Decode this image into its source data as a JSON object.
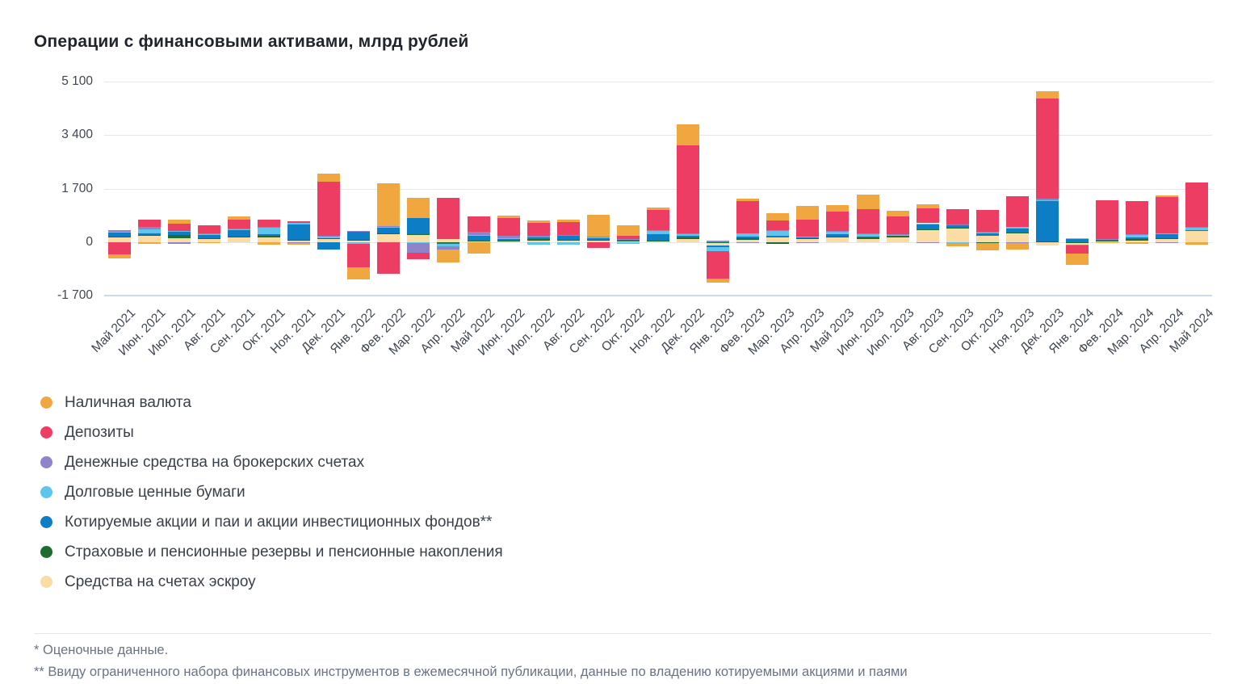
{
  "page": {
    "title": "Операции с финансовыми активами, млрд рублей"
  },
  "chart_data": {
    "type": "bar",
    "stacked": true,
    "title": "Операции с финансовыми активами, млрд рублей",
    "unit": "млрд рублей",
    "legend_position": "bottom-left",
    "grid": true,
    "x_label_rotation": -45,
    "y_axis": {
      "range": [
        -1700,
        5100
      ],
      "ticks": [
        {
          "value": 5100,
          "label": "5 100"
        },
        {
          "value": 3400,
          "label": "3 400"
        },
        {
          "value": 1700,
          "label": "1 700"
        },
        {
          "value": 0,
          "label": "0"
        },
        {
          "value": -1700,
          "label": "-1 700"
        }
      ]
    },
    "categories": [
      "Май 2021",
      "Июн. 2021",
      "Июл. 2021",
      "Авг. 2021",
      "Сен. 2021",
      "Окт. 2021",
      "Ноя. 2021",
      "Дек. 2021",
      "Янв. 2022",
      "Фев. 2022",
      "Мар. 2022",
      "Апр. 2022",
      "Май 2022",
      "Июн. 2022",
      "Июл. 2022",
      "Авг. 2022",
      "Сен. 2022",
      "Окт. 2022",
      "Ноя. 2022",
      "Дек. 2022",
      "Янв. 2023",
      "Фев. 2023",
      "Мар. 2023",
      "Апр. 2023",
      "Май 2023",
      "Июн. 2023",
      "Июл. 2023",
      "Авг. 2023",
      "Сен. 2023",
      "Окт. 2023",
      "Ноя. 2023",
      "Дек. 2023",
      "Янв. 2024",
      "Фев. 2024",
      "Мар. 2024",
      "Апр. 2024",
      "Май 2024"
    ],
    "series": [
      {
        "key": "cash",
        "name": "Наличная валюта",
        "color": "#f0a73f",
        "values": [
          -130,
          -60,
          130,
          -40,
          110,
          -85,
          -30,
          255,
          -375,
          1360,
          640,
          -410,
          -365,
          85,
          60,
          85,
          685,
          315,
          85,
          660,
          -130,
          85,
          215,
          430,
          215,
          480,
          170,
          130,
          -75,
          -215,
          -200,
          255,
          -365,
          -40,
          -50,
          55,
          -85
        ]
      },
      {
        "key": "deposits",
        "name": "Депозиты",
        "color": "#ee3d63",
        "values": [
          -385,
          250,
          215,
          240,
          275,
          230,
          60,
          1715,
          -740,
          -990,
          -210,
          1310,
          510,
          555,
          430,
          400,
          -195,
          110,
          640,
          2800,
          -870,
          1030,
          325,
          540,
          615,
          750,
          570,
          470,
          510,
          710,
          975,
          3160,
          -255,
          1220,
          1030,
          1140,
          1410
        ]
      },
      {
        "key": "brokerage",
        "name": "Денежные средства на брокерских счетах",
        "color": "#8f83c9",
        "values": [
          50,
          60,
          -45,
          15,
          15,
          20,
          -40,
          20,
          15,
          15,
          -300,
          -90,
          85,
          70,
          50,
          20,
          15,
          10,
          15,
          20,
          35,
          -30,
          15,
          -30,
          15,
          15,
          15,
          -30,
          10,
          10,
          -30,
          50,
          -20,
          10,
          20,
          -30,
          10
        ]
      },
      {
        "key": "debt_securities",
        "name": "Долговые ценные бумаги",
        "color": "#5fc5ef",
        "values": [
          10,
          130,
          45,
          50,
          50,
          215,
          60,
          75,
          -60,
          50,
          -30,
          -85,
          20,
          20,
          -70,
          -70,
          40,
          -50,
          110,
          60,
          -120,
          100,
          145,
          40,
          85,
          105,
          10,
          15,
          -60,
          15,
          40,
          35,
          25,
          20,
          85,
          20,
          85
        ]
      },
      {
        "key": "equities",
        "name": "Котируемые акции и паи и акции инвестиционных фондов**",
        "color": "#0d7dc6",
        "values": [
          155,
          50,
          100,
          100,
          190,
          60,
          480,
          -230,
          265,
          180,
          515,
          -20,
          170,
          70,
          50,
          140,
          45,
          50,
          190,
          50,
          -50,
          50,
          60,
          20,
          85,
          20,
          20,
          190,
          70,
          110,
          130,
          1280,
          90,
          20,
          60,
          140,
          20
        ]
      },
      {
        "key": "insurance_pension",
        "name": "Страховые и пенсионные резервы и пенсионные накопления",
        "color": "#1d6c31",
        "values": [
          10,
          45,
          85,
          20,
          10,
          50,
          10,
          15,
          35,
          15,
          15,
          -30,
          20,
          30,
          30,
          10,
          35,
          20,
          15,
          50,
          10,
          50,
          -50,
          10,
          10,
          50,
          50,
          10,
          10,
          -40,
          10,
          25,
          10,
          30,
          40,
          10,
          10
        ]
      },
      {
        "key": "escrow",
        "name": "Средства на счетах эскроу",
        "color": "#fbdca4",
        "values": [
          155,
          190,
          135,
          100,
          170,
          145,
          60,
          105,
          40,
          255,
          230,
          100,
          25,
          15,
          60,
          60,
          50,
          20,
          45,
          100,
          -110,
          70,
          155,
          110,
          155,
          100,
          155,
          385,
          460,
          190,
          300,
          -110,
          -85,
          20,
          60,
          120,
          360
        ]
      }
    ]
  },
  "footnotes": {
    "line1": "* Оценочные данные.",
    "line2": "** Ввиду ограниченного набора финансовых инструментов в ежемесячной публикации, данные по владению котируемыми акциями и паями"
  }
}
